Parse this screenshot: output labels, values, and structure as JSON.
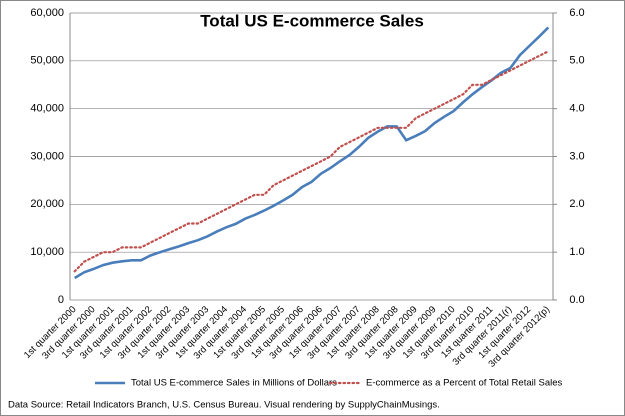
{
  "chart_data": {
    "type": "line",
    "title": "Total US E-commerce Sales",
    "categories": [
      "1st quarter 2000",
      null,
      "3rd quarter 2000",
      null,
      "1st quarter 2001",
      null,
      "3rd quarter 2001",
      null,
      "1st quarter 2002",
      null,
      "3rd quarter 2002",
      null,
      "1st quarter 2003",
      null,
      "3rd quarter 2003",
      null,
      "1st quarter 2004",
      null,
      "3rd quarter 2004",
      null,
      "1st quarter 2005",
      null,
      "3rd quarter 2005",
      null,
      "1st quarter 2006",
      null,
      "3rd quarter 2006",
      null,
      "1st quarter 2007",
      null,
      "3rd quarter 2007",
      null,
      "1st quarter 2008",
      null,
      "3rd quarter 2008",
      null,
      "1st quarter 2009",
      null,
      "3rd quarter 2009",
      null,
      "1st quarter 2010",
      null,
      "3rd quarter 2010",
      null,
      "1st quarter 2011",
      null,
      "3rd quarter 2011(r)",
      null,
      "1st quarter 2012",
      null,
      "3rd quarter 2012(p)"
    ],
    "series": [
      {
        "name": "Total US E-commerce Sales in Millions of Dollars",
        "color": "#4a7ebb",
        "values": [
          4600,
          5800,
          6500,
          7300,
          7800,
          8100,
          8300,
          8300,
          9300,
          10000,
          10600,
          11200,
          11900,
          12500,
          13300,
          14300,
          15200,
          15900,
          17000,
          17800,
          18700,
          19700,
          20800,
          22000,
          23600,
          24700,
          26400,
          27600,
          29000,
          30300,
          32000,
          33900,
          35200,
          36300,
          36300,
          33400,
          34300,
          35300,
          37000,
          38300,
          39500,
          41300,
          43000,
          44500,
          45900,
          47500,
          48500,
          51200,
          53100,
          55000,
          57000
        ]
      },
      {
        "name": "E-commerce as a Percent of Total Retail Sales",
        "color": "#c0504d",
        "axis": "y2",
        "values": [
          0.6,
          0.8,
          0.9,
          1.0,
          1.0,
          1.1,
          1.1,
          1.1,
          1.2,
          1.3,
          1.4,
          1.5,
          1.6,
          1.6,
          1.7,
          1.8,
          1.9,
          2.0,
          2.1,
          2.2,
          2.2,
          2.4,
          2.5,
          2.6,
          2.7,
          2.8,
          2.9,
          3.0,
          3.2,
          3.3,
          3.4,
          3.5,
          3.6,
          3.6,
          3.6,
          3.6,
          3.8,
          3.9,
          4.0,
          4.1,
          4.2,
          4.3,
          4.5,
          4.5,
          4.6,
          4.7,
          4.8,
          4.9,
          5.0,
          5.1,
          5.2
        ]
      }
    ],
    "ylim": [
      0,
      60000
    ],
    "yticks": [
      0,
      {
        "value": 10000,
        "label": "10,000"
      },
      {
        "value": 20000,
        "label": "20,000"
      },
      {
        "value": 30000,
        "label": "30,000"
      },
      {
        "value": 40000,
        "label": "40,000"
      },
      {
        "value": 50000,
        "label": "50,000"
      },
      {
        "value": 60000,
        "label": "60,000"
      }
    ],
    "y2lim": [
      0,
      6
    ],
    "y2ticks": [
      {
        "value": 0,
        "label": "0.0"
      },
      {
        "value": 1,
        "label": "1.0"
      },
      {
        "value": 2,
        "label": "2.0"
      },
      {
        "value": 3,
        "label": "3.0"
      },
      {
        "value": 4,
        "label": "4.0"
      },
      {
        "value": 5,
        "label": "5.0"
      },
      {
        "value": 6,
        "label": "6.0"
      }
    ],
    "grid": true,
    "legend": "bottom",
    "source": "Data Source: Retail Indicators Branch, U.S. Census Bureau. Visual rendering by SupplyChainMusings."
  }
}
